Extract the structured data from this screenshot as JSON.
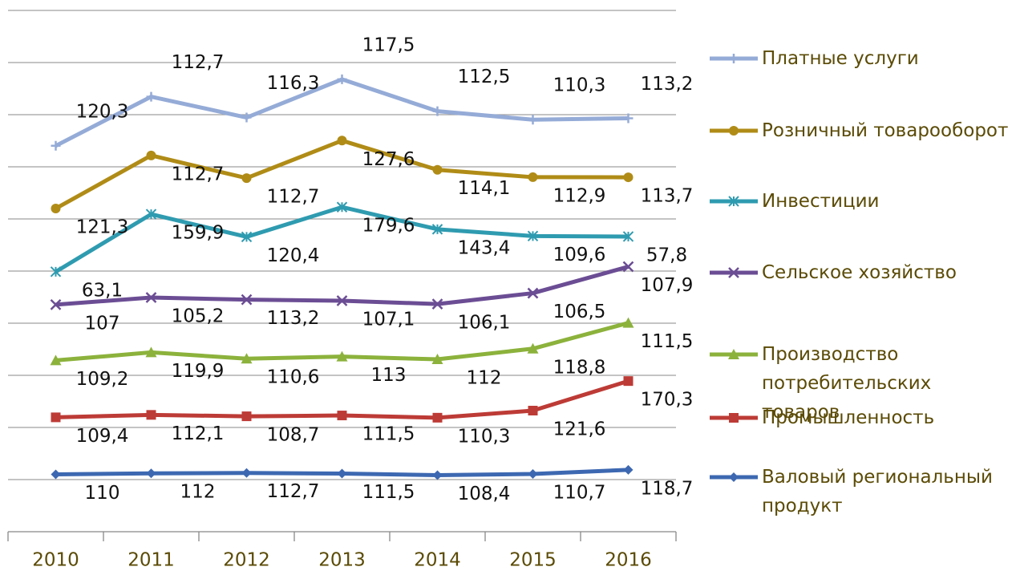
{
  "chart_data": {
    "type": "stacked_line",
    "categories": [
      "2010",
      "2011",
      "2012",
      "2013",
      "2014",
      "2015",
      "2016"
    ],
    "ylim": [
      0,
      1000
    ],
    "yticks": [
      0,
      100,
      200,
      300,
      400,
      500,
      600,
      700,
      800,
      900,
      1000
    ],
    "grid": true,
    "series": [
      {
        "name": "Валовый региональный продукт",
        "color": "#3d68b1",
        "marker": "diamond",
        "values": [
          110,
          112,
          112.7,
          111.5,
          108.4,
          110.7,
          118.7
        ],
        "value_labels": [
          "110",
          "112",
          "112,7",
          "111,5",
          "108,4",
          "110,7",
          "118,7"
        ]
      },
      {
        "name": "Промышленность",
        "color": "#bd3b36",
        "marker": "square",
        "values": [
          109.4,
          112.1,
          108.7,
          111.5,
          110.3,
          121.6,
          170.3
        ],
        "value_labels": [
          "109,4",
          "112,1",
          "108,7",
          "111,5",
          "110,3",
          "121,6",
          "170,3"
        ]
      },
      {
        "name": "Производство потребительских товаров",
        "color": "#8cb23c",
        "marker": "triangle",
        "values": [
          109.2,
          119.9,
          110.6,
          113,
          112,
          118.8,
          111.5
        ],
        "value_labels": [
          "109,2",
          "119,9",
          "110,6",
          "113",
          "112",
          "118,8",
          "111,5"
        ]
      },
      {
        "name": "Сельское хозяйство",
        "color": "#6b4d94",
        "marker": "x",
        "values": [
          107,
          105.2,
          113.2,
          107.1,
          106.1,
          106.5,
          107.9
        ],
        "value_labels": [
          "107",
          "105,2",
          "113,2",
          "107,1",
          "106,1",
          "106,5",
          "107,9"
        ]
      },
      {
        "name": "Инвестиции",
        "color": "#2f9bb0",
        "marker": "asterisk",
        "values": [
          63.1,
          159.9,
          120.4,
          179.6,
          143.4,
          109.6,
          57.8
        ],
        "value_labels": [
          "63,1",
          "159,9",
          "120,4",
          "179,6",
          "143,4",
          "109,6",
          "57,8"
        ]
      },
      {
        "name": "Розничный товарооборот",
        "color": "#b08c17",
        "marker": "circle",
        "values": [
          121.3,
          112.7,
          112.7,
          127.6,
          114.1,
          112.9,
          113.7
        ],
        "value_labels": [
          "121,3",
          "112,7",
          "112,7",
          "127,6",
          "114,1",
          "112,9",
          "113,7"
        ]
      },
      {
        "name": "Платные услуги",
        "color": "#95abd7",
        "marker": "plus",
        "values": [
          120.3,
          112.7,
          116.3,
          117.5,
          112.5,
          110.3,
          113.2
        ],
        "value_labels": [
          "120,3",
          "112,7",
          "116,3",
          "117,5",
          "112,5",
          "110,3",
          "113,2"
        ]
      }
    ]
  }
}
